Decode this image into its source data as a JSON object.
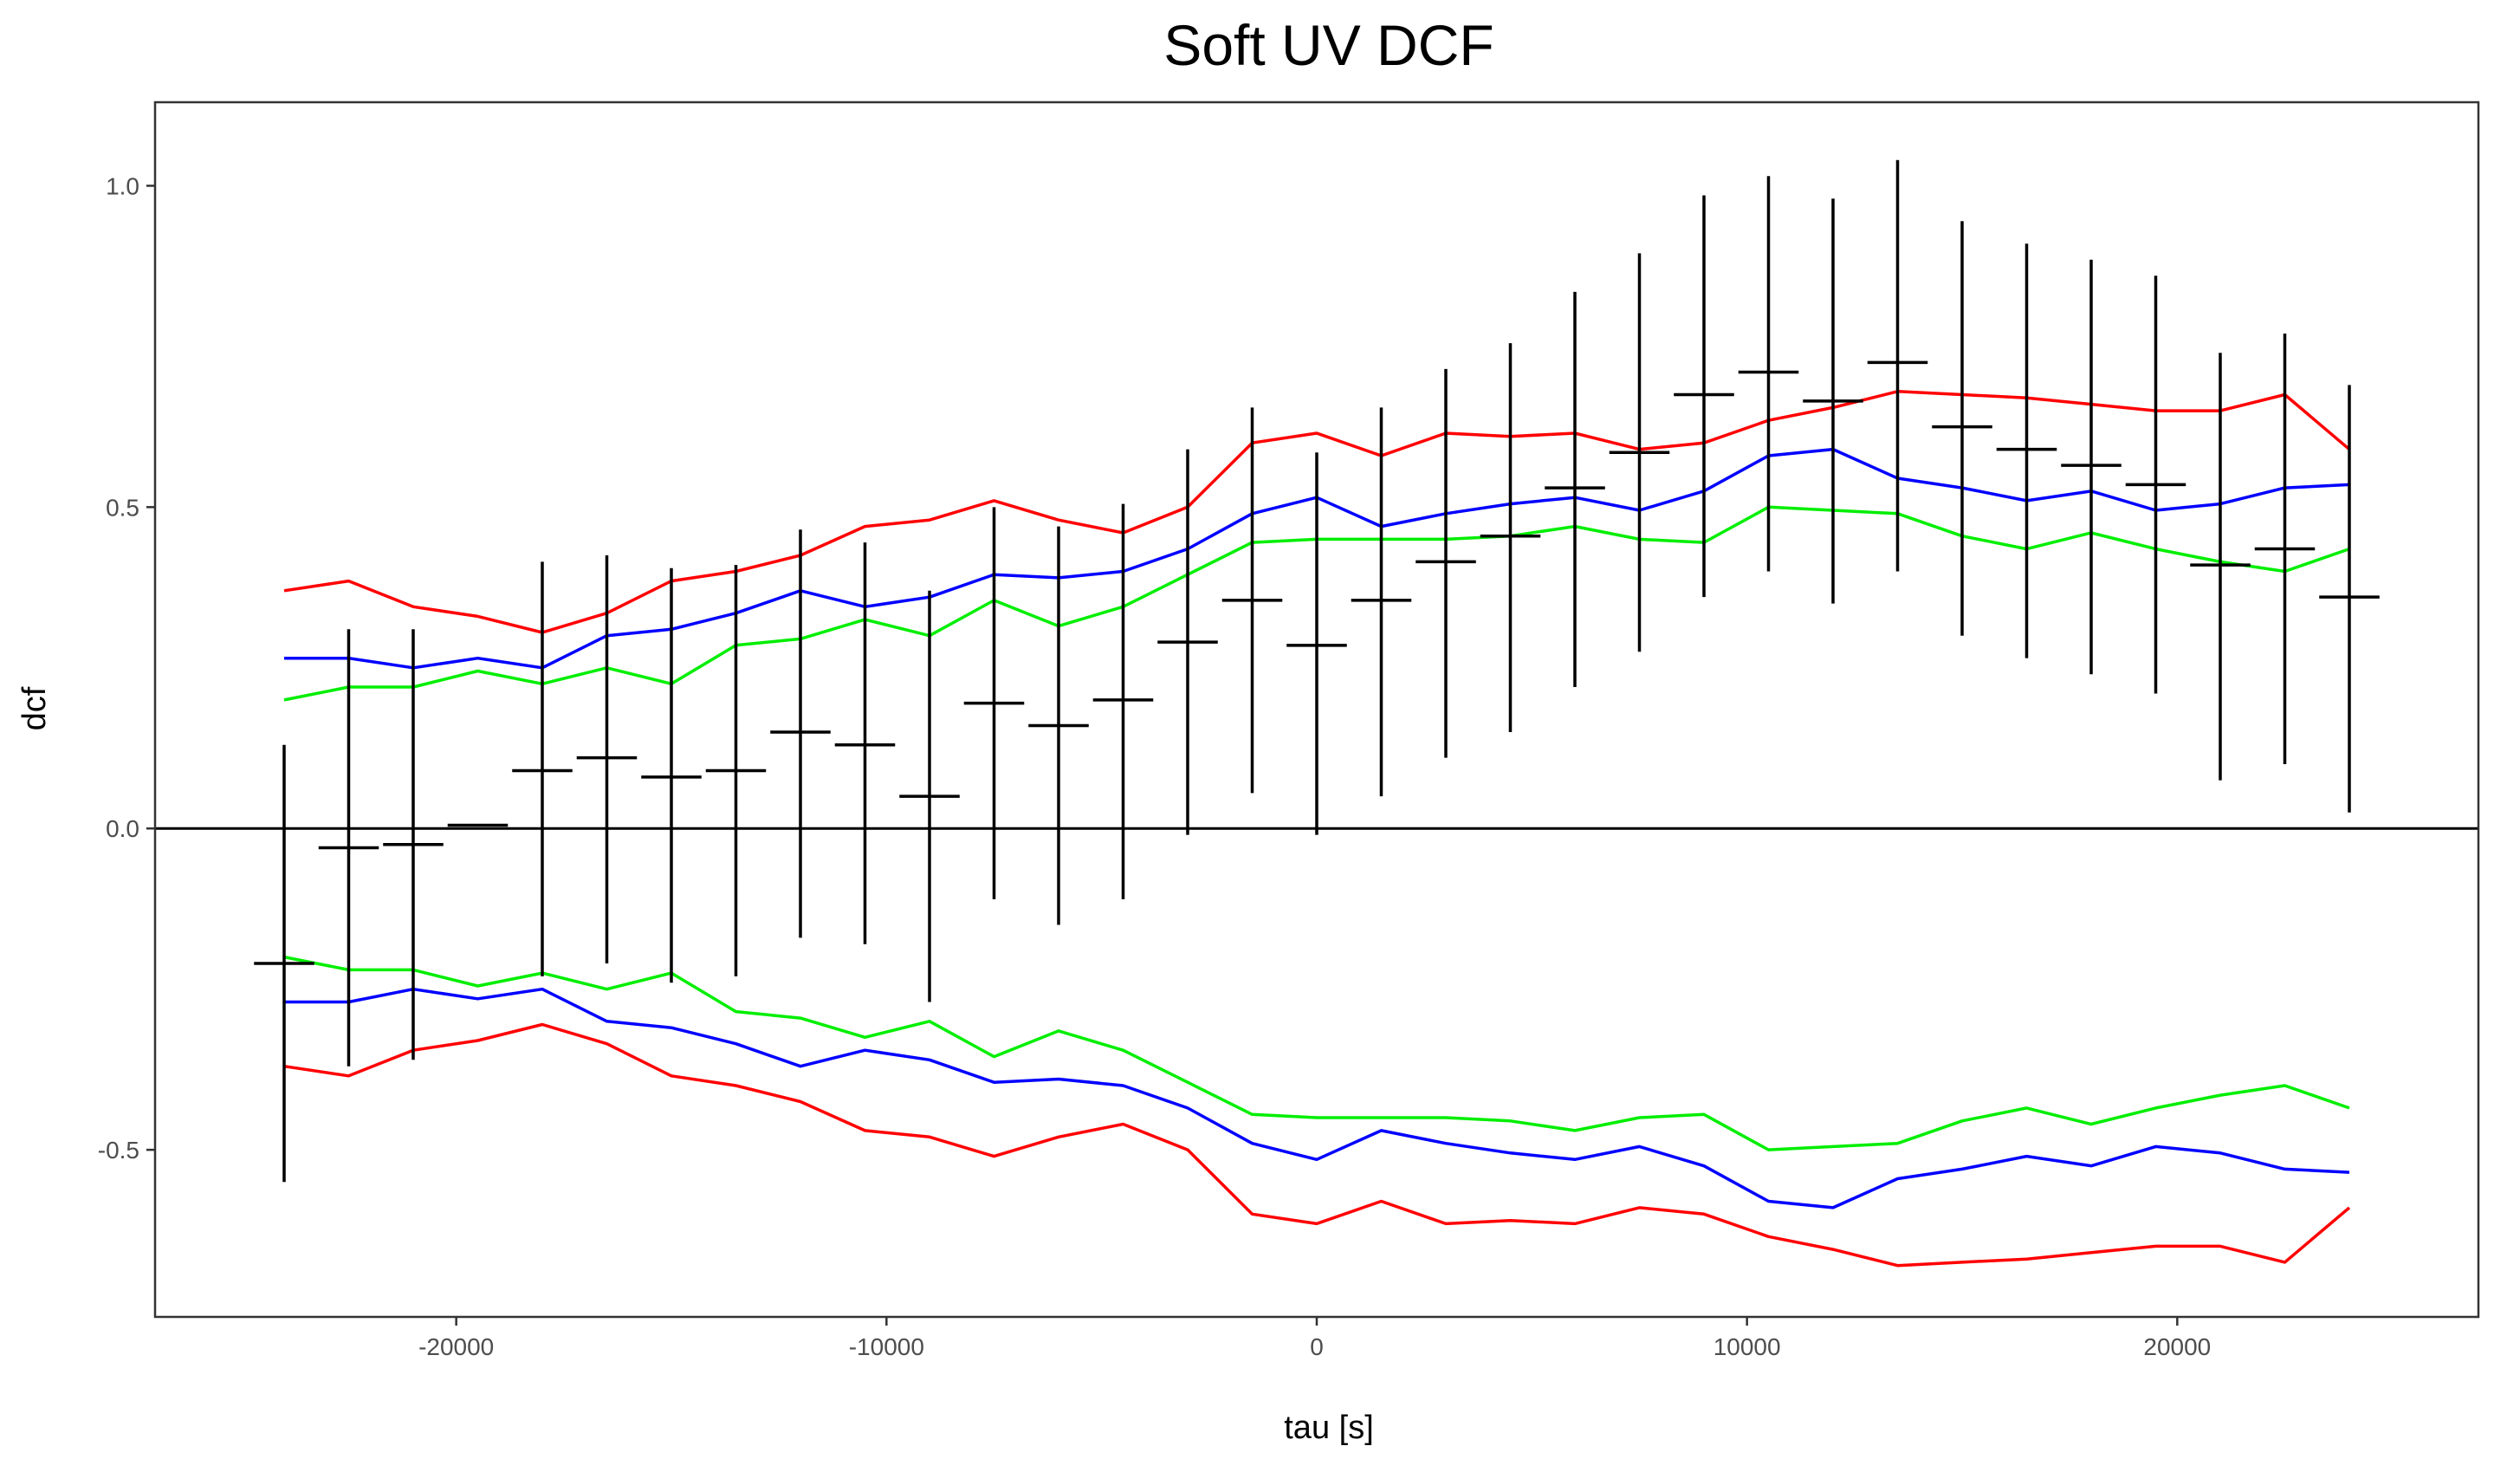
{
  "chart_data": {
    "type": "line",
    "title": "Soft UV DCF",
    "xlabel": "tau [s]",
    "ylabel": "dcf",
    "xlim": [
      -27000,
      27000
    ],
    "ylim": [
      -0.76,
      1.13
    ],
    "xticks": [
      -20000,
      -10000,
      0,
      10000,
      20000
    ],
    "xtick_labels": [
      "-20000",
      "-10000",
      "0",
      "10000",
      "20000"
    ],
    "yticks": [
      -0.5,
      0.0,
      0.5,
      1.0
    ],
    "ytick_labels": [
      "-0.5",
      "0.0",
      "0.5",
      "1.0"
    ],
    "grid": false,
    "legend": "none",
    "zero_line": 0,
    "x": [
      -24000,
      -22500,
      -21000,
      -19500,
      -18000,
      -16500,
      -15000,
      -13500,
      -12000,
      -10500,
      -9000,
      -7500,
      -6000,
      -4500,
      -3000,
      -1500,
      0,
      1500,
      3000,
      4500,
      6000,
      7500,
      9000,
      10500,
      12000,
      13500,
      15000,
      16500,
      18000,
      19500,
      21000,
      22500,
      24000
    ],
    "dcf": {
      "color": "#000000",
      "xerr": 700,
      "y": [
        -0.21,
        -0.03,
        -0.025,
        0.005,
        0.09,
        0.11,
        0.08,
        0.09,
        0.15,
        0.13,
        0.05,
        0.195,
        0.16,
        0.2,
        0.29,
        0.355,
        0.285,
        0.355,
        0.415,
        0.455,
        0.53,
        0.585,
        0.675,
        0.71,
        0.665,
        0.725,
        0.625,
        0.59,
        0.565,
        0.535,
        0.41,
        0.435,
        0.36
      ],
      "ylow": [
        -0.55,
        -0.37,
        -0.36,
        null,
        -0.23,
        -0.21,
        -0.24,
        -0.23,
        -0.17,
        -0.18,
        -0.27,
        -0.11,
        -0.15,
        -0.11,
        -0.01,
        0.055,
        -0.01,
        0.05,
        0.11,
        0.15,
        0.22,
        0.275,
        0.36,
        0.4,
        0.35,
        0.4,
        0.3,
        0.265,
        0.24,
        0.21,
        0.075,
        0.1,
        0.025
      ],
      "yhigh": [
        0.13,
        0.31,
        0.31,
        null,
        0.415,
        0.425,
        0.405,
        0.41,
        0.465,
        0.445,
        0.37,
        0.5,
        0.47,
        0.505,
        0.59,
        0.655,
        0.585,
        0.655,
        0.715,
        0.755,
        0.835,
        0.895,
        0.985,
        1.015,
        0.98,
        1.04,
        0.945,
        0.91,
        0.885,
        0.86,
        0.74,
        0.77,
        0.69
      ]
    },
    "series": [
      {
        "color": "#ff0000",
        "values": [
          0.37,
          0.385,
          0.345,
          0.33,
          0.305,
          0.335,
          0.385,
          0.4,
          0.425,
          0.47,
          0.48,
          0.51,
          0.48,
          0.46,
          0.5,
          0.6,
          0.615,
          0.58,
          0.615,
          0.61,
          0.615,
          0.59,
          0.6,
          0.635,
          0.655,
          0.68,
          0.675,
          0.67,
          0.66,
          0.65,
          0.65,
          0.675,
          0.59
        ]
      },
      {
        "color": "#0000ff",
        "values": [
          0.265,
          0.265,
          0.25,
          0.265,
          0.25,
          0.3,
          0.31,
          0.335,
          0.37,
          0.345,
          0.36,
          0.395,
          0.39,
          0.4,
          0.435,
          0.49,
          0.515,
          0.47,
          0.49,
          0.505,
          0.515,
          0.495,
          0.525,
          0.58,
          0.59,
          0.545,
          0.53,
          0.51,
          0.525,
          0.495,
          0.505,
          0.53,
          0.535
        ]
      },
      {
        "color": "#00ee00",
        "values": [
          0.2,
          0.22,
          0.22,
          0.245,
          0.225,
          0.25,
          0.225,
          0.285,
          0.295,
          0.325,
          0.3,
          0.355,
          0.315,
          0.345,
          0.395,
          0.445,
          0.45,
          0.45,
          0.45,
          0.455,
          0.47,
          0.45,
          0.445,
          0.5,
          0.495,
          0.49,
          0.455,
          0.435,
          0.46,
          0.435,
          0.415,
          0.4,
          0.435
        ]
      },
      {
        "color": "#ff0000",
        "values": [
          -0.37,
          -0.385,
          -0.345,
          -0.33,
          -0.305,
          -0.335,
          -0.385,
          -0.4,
          -0.425,
          -0.47,
          -0.48,
          -0.51,
          -0.48,
          -0.46,
          -0.5,
          -0.6,
          -0.615,
          -0.58,
          -0.615,
          -0.61,
          -0.615,
          -0.59,
          -0.6,
          -0.635,
          -0.655,
          -0.68,
          -0.675,
          -0.67,
          -0.66,
          -0.65,
          -0.65,
          -0.675,
          -0.59
        ]
      },
      {
        "color": "#0000ff",
        "values": [
          -0.27,
          -0.27,
          -0.25,
          -0.265,
          -0.25,
          -0.3,
          -0.31,
          -0.335,
          -0.37,
          -0.345,
          -0.36,
          -0.395,
          -0.39,
          -0.4,
          -0.435,
          -0.49,
          -0.515,
          -0.47,
          -0.49,
          -0.505,
          -0.515,
          -0.495,
          -0.525,
          -0.58,
          -0.59,
          -0.545,
          -0.53,
          -0.51,
          -0.525,
          -0.495,
          -0.505,
          -0.53,
          -0.535
        ]
      },
      {
        "color": "#00ee00",
        "values": [
          -0.2,
          -0.22,
          -0.22,
          -0.245,
          -0.225,
          -0.25,
          -0.225,
          -0.285,
          -0.295,
          -0.325,
          -0.3,
          -0.355,
          -0.315,
          -0.345,
          -0.395,
          -0.445,
          -0.45,
          -0.45,
          -0.45,
          -0.455,
          -0.47,
          -0.45,
          -0.445,
          -0.5,
          -0.495,
          -0.49,
          -0.455,
          -0.435,
          -0.46,
          -0.435,
          -0.415,
          -0.4,
          -0.435
        ]
      }
    ]
  }
}
